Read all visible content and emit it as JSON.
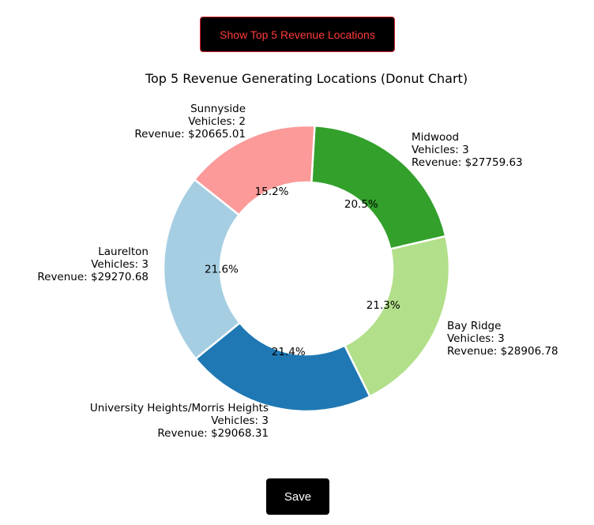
{
  "header": {
    "toggle_button_label": "Show Top 5 Revenue Locations"
  },
  "footer": {
    "save_button_label": "Save"
  },
  "colors": {
    "button_background": "#000000",
    "button_text_red": "#ff3b3b",
    "slice_border": "#ffffff"
  },
  "chart_data": {
    "type": "pie",
    "variant": "donut",
    "title": "Top 5 Revenue Generating Locations (Donut Chart)",
    "slices": [
      {
        "location": "Midwood",
        "vehicles_label": "Vehicles: 3",
        "revenue_label": "Revenue: $27759.63",
        "revenue": 27759.63,
        "vehicles": 3,
        "percent_label": "20.5%",
        "color": "#33a02c"
      },
      {
        "location": "Bay Ridge",
        "vehicles_label": "Vehicles: 3",
        "revenue_label": "Revenue: $28906.78",
        "revenue": 28906.78,
        "vehicles": 3,
        "percent_label": "21.3%",
        "color": "#b2df8a"
      },
      {
        "location": "University Heights/Morris Heights",
        "vehicles_label": "Vehicles: 3",
        "revenue_label": "Revenue: $29068.31",
        "revenue": 29068.31,
        "vehicles": 3,
        "percent_label": "21.4%",
        "color": "#1f78b4"
      },
      {
        "location": "Laurelton",
        "vehicles_label": "Vehicles: 3",
        "revenue_label": "Revenue: $29270.68",
        "revenue": 29270.68,
        "vehicles": 3,
        "percent_label": "21.6%",
        "color": "#a6cee3"
      },
      {
        "location": "Sunnyside",
        "vehicles_label": "Vehicles: 2",
        "revenue_label": "Revenue: $20665.01",
        "revenue": 20665.01,
        "vehicles": 2,
        "percent_label": "15.2%",
        "color": "#fb9a99"
      }
    ],
    "legend": "none",
    "grid": false
  }
}
